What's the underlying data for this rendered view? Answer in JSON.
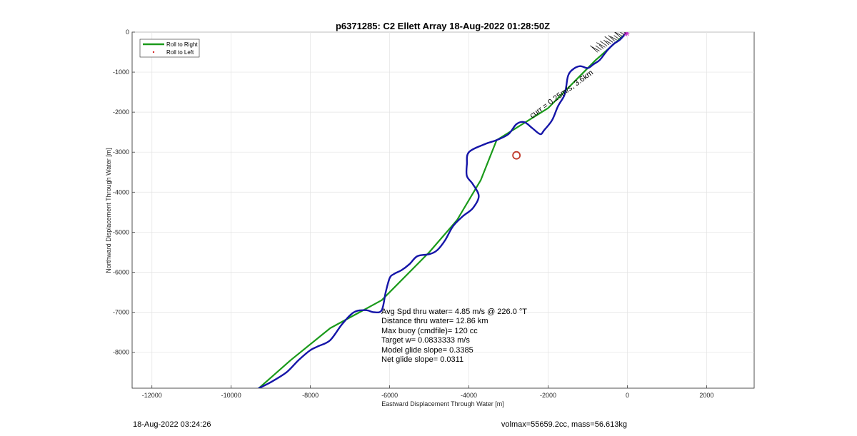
{
  "chart_data": {
    "type": "line",
    "title": "p6371285: C2 Ellett Array 18-Aug-2022 01:28:50Z",
    "xlabel": "Eastward Displacement Through Water [m]",
    "ylabel": "Northward Displacement Through Water [m]",
    "xlim": [
      -12500,
      3200
    ],
    "ylim": [
      -8900,
      0
    ],
    "xticks": [
      -12000,
      -10000,
      -8000,
      -6000,
      -4000,
      -2000,
      0,
      2000
    ],
    "xtick_labels": [
      "-12000",
      "-10000",
      "-8000",
      "-6000",
      "-4000",
      "-2000",
      "0",
      "2000"
    ],
    "yticks": [
      0,
      -1000,
      -2000,
      -3000,
      -4000,
      -5000,
      -6000,
      -7000,
      -8000
    ],
    "ytick_labels": [
      "0",
      "-1000",
      "-2000",
      "-3000",
      "-4000",
      "-5000",
      "-6000",
      "-7000",
      "-8000"
    ],
    "grid": true,
    "legend": {
      "placement": "top-left",
      "entries": [
        {
          "label": "Roll to Right",
          "color": "#1a9a1a",
          "style": "line"
        },
        {
          "label": "Roll to Left",
          "color": "#d62728",
          "style": "dot"
        }
      ]
    },
    "series": [
      {
        "name": "Roll to Right",
        "color": "#1a9a1a",
        "x": [
          0,
          -800,
          -2000,
          -3300,
          -3700,
          -4300,
          -5000,
          -6200,
          -7500,
          -8500,
          -9300
        ],
        "y": [
          0,
          -700,
          -1900,
          -2700,
          -3700,
          -4700,
          -5500,
          -6700,
          -7400,
          -8200,
          -8900
        ]
      },
      {
        "color": "#1515a8",
        "x": [
          0,
          -100,
          -200,
          -350,
          -500,
          -580,
          -700,
          -850,
          -1000,
          -1200,
          -1400,
          -1500,
          -1550,
          -1600,
          -1750,
          -1900,
          -2100,
          -2200,
          -2400,
          -2600,
          -2800,
          -3000,
          -3300,
          -3600,
          -4000,
          -4050,
          -4050,
          -3900,
          -3750,
          -3900,
          -4150,
          -4400,
          -4600,
          -4800,
          -5000,
          -5300,
          -5500,
          -5700,
          -5900,
          -6000,
          -6100,
          -6200,
          -6400,
          -6600,
          -6900,
          -7200,
          -7500,
          -7800,
          -8000,
          -8300,
          -8600,
          -9000,
          -9300
        ],
        "y": [
          0,
          -100,
          -200,
          -300,
          -450,
          -550,
          -700,
          -800,
          -900,
          -850,
          -950,
          -1100,
          -1400,
          -1600,
          -1850,
          -2200,
          -2450,
          -2550,
          -2400,
          -2250,
          -2300,
          -2550,
          -2700,
          -2800,
          -3000,
          -3300,
          -3600,
          -3800,
          -4100,
          -4400,
          -4600,
          -4850,
          -5200,
          -5450,
          -5550,
          -5600,
          -5800,
          -5950,
          -6050,
          -6150,
          -6500,
          -6950,
          -7000,
          -6950,
          -7000,
          -7300,
          -7700,
          -7850,
          -7950,
          -8200,
          -8500,
          -8750,
          -8900
        ]
      }
    ],
    "markers": [
      {
        "x": -2800,
        "y": -3080,
        "shape": "circle",
        "color": "#c0392b"
      },
      {
        "x": -20,
        "y": -30,
        "shape": "star",
        "color": "#cc33cc"
      }
    ],
    "annotations": [
      "Avg Spd thru water=  4.85 m/s @ 226.0 °T",
      "Distance thru water= 12.86 km",
      "Max buoy (cmdfile)= 120 cc",
      "Target w= 0.0833333 m/s",
      "Model glide slope= 0.3385",
      "Net glide slope= 0.0311"
    ],
    "track_label": "curr = 0.25m/s, 3.6km",
    "footer_left": "18-Aug-2022 03:24:26",
    "footer_right": "volmax=55659.2cc, mass=56.613kg"
  }
}
